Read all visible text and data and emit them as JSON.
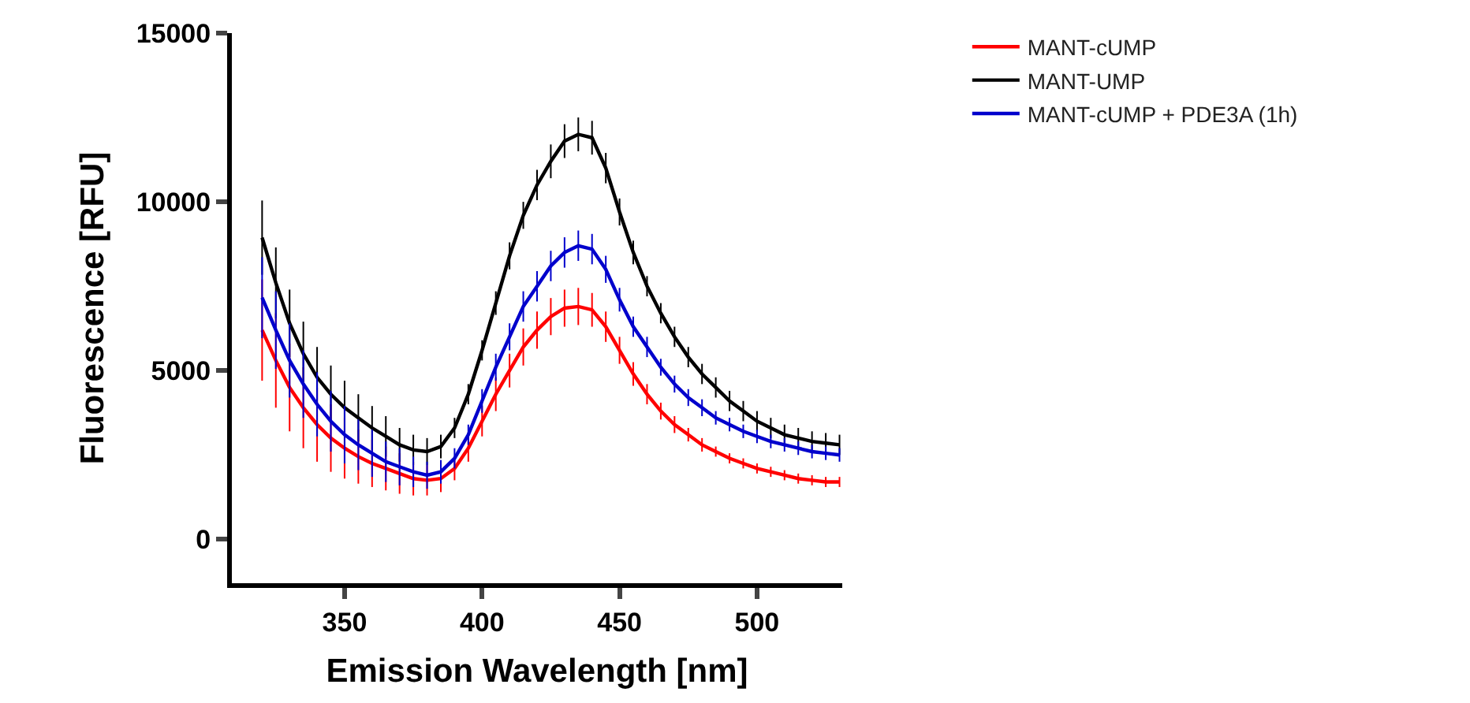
{
  "chart_data": {
    "type": "line",
    "xlabel": "Emission Wavelength [nm]",
    "ylabel": "Fluorescence [RFU]",
    "x": [
      320,
      325,
      330,
      335,
      340,
      345,
      350,
      355,
      360,
      365,
      370,
      375,
      380,
      385,
      390,
      395,
      400,
      405,
      410,
      415,
      420,
      425,
      430,
      435,
      440,
      445,
      450,
      455,
      460,
      465,
      470,
      475,
      480,
      485,
      490,
      495,
      500,
      505,
      510,
      515,
      520,
      525,
      530
    ],
    "xlim": [
      309,
      531
    ],
    "xticks": [
      350,
      400,
      450,
      500
    ],
    "ylim": [
      -1300,
      15000
    ],
    "yticks": [
      0,
      5000,
      10000,
      15000
    ],
    "legend": "top right",
    "marker": "none",
    "line_style": "solid",
    "series": [
      {
        "name": "MANT-cUMP",
        "color": "#ff0000",
        "values": [
          6200,
          5300,
          4500,
          3900,
          3400,
          3000,
          2700,
          2450,
          2250,
          2100,
          1950,
          1800,
          1750,
          1800,
          2100,
          2700,
          3500,
          4300,
          5000,
          5700,
          6200,
          6600,
          6850,
          6900,
          6800,
          6300,
          5600,
          4900,
          4300,
          3800,
          3400,
          3100,
          2800,
          2600,
          2400,
          2250,
          2100,
          2000,
          1900,
          1800,
          1750,
          1700,
          1700
        ],
        "errors": [
          1500,
          1400,
          1300,
          1200,
          1100,
          1000,
          900,
          800,
          700,
          650,
          600,
          500,
          450,
          400,
          350,
          400,
          450,
          500,
          500,
          550,
          550,
          550,
          550,
          550,
          500,
          450,
          400,
          350,
          300,
          250,
          250,
          200,
          200,
          150,
          150,
          150,
          150,
          150,
          150,
          150,
          150,
          150,
          150
        ]
      },
      {
        "name": "MANT-UMP",
        "color": "#000000",
        "values": [
          8940,
          7600,
          6400,
          5500,
          4800,
          4300,
          3900,
          3600,
          3300,
          3050,
          2800,
          2650,
          2600,
          2750,
          3300,
          4300,
          5600,
          7000,
          8400,
          9600,
          10500,
          11200,
          11800,
          12000,
          11900,
          11000,
          9700,
          8500,
          7500,
          6700,
          6000,
          5400,
          4900,
          4500,
          4100,
          3800,
          3500,
          3300,
          3100,
          3000,
          2900,
          2850,
          2800
        ],
        "errors": [
          1100,
          1050,
          1000,
          950,
          900,
          850,
          800,
          700,
          650,
          600,
          500,
          450,
          400,
          350,
          300,
          300,
          300,
          350,
          400,
          400,
          450,
          500,
          500,
          500,
          500,
          450,
          400,
          350,
          300,
          300,
          300,
          300,
          300,
          300,
          300,
          300,
          300,
          300,
          300,
          300,
          300,
          300,
          300
        ]
      },
      {
        "name": "MANT-cUMP + PDE3A (1h)",
        "color": "#0000cc",
        "values": [
          7160,
          6200,
          5300,
          4600,
          4000,
          3500,
          3100,
          2800,
          2550,
          2300,
          2150,
          2000,
          1900,
          2000,
          2400,
          3100,
          4100,
          5100,
          6000,
          6900,
          7500,
          8100,
          8500,
          8700,
          8600,
          8000,
          7100,
          6300,
          5700,
          5100,
          4600,
          4200,
          3900,
          3600,
          3400,
          3200,
          3050,
          2900,
          2800,
          2700,
          2600,
          2550,
          2500
        ],
        "errors": [
          1200,
          1150,
          1100,
          1000,
          950,
          900,
          850,
          750,
          700,
          600,
          550,
          450,
          400,
          350,
          300,
          300,
          350,
          400,
          400,
          450,
          450,
          450,
          450,
          450,
          450,
          400,
          350,
          300,
          300,
          250,
          250,
          250,
          250,
          200,
          200,
          200,
          200,
          200,
          200,
          200,
          200,
          200,
          200
        ]
      }
    ]
  }
}
